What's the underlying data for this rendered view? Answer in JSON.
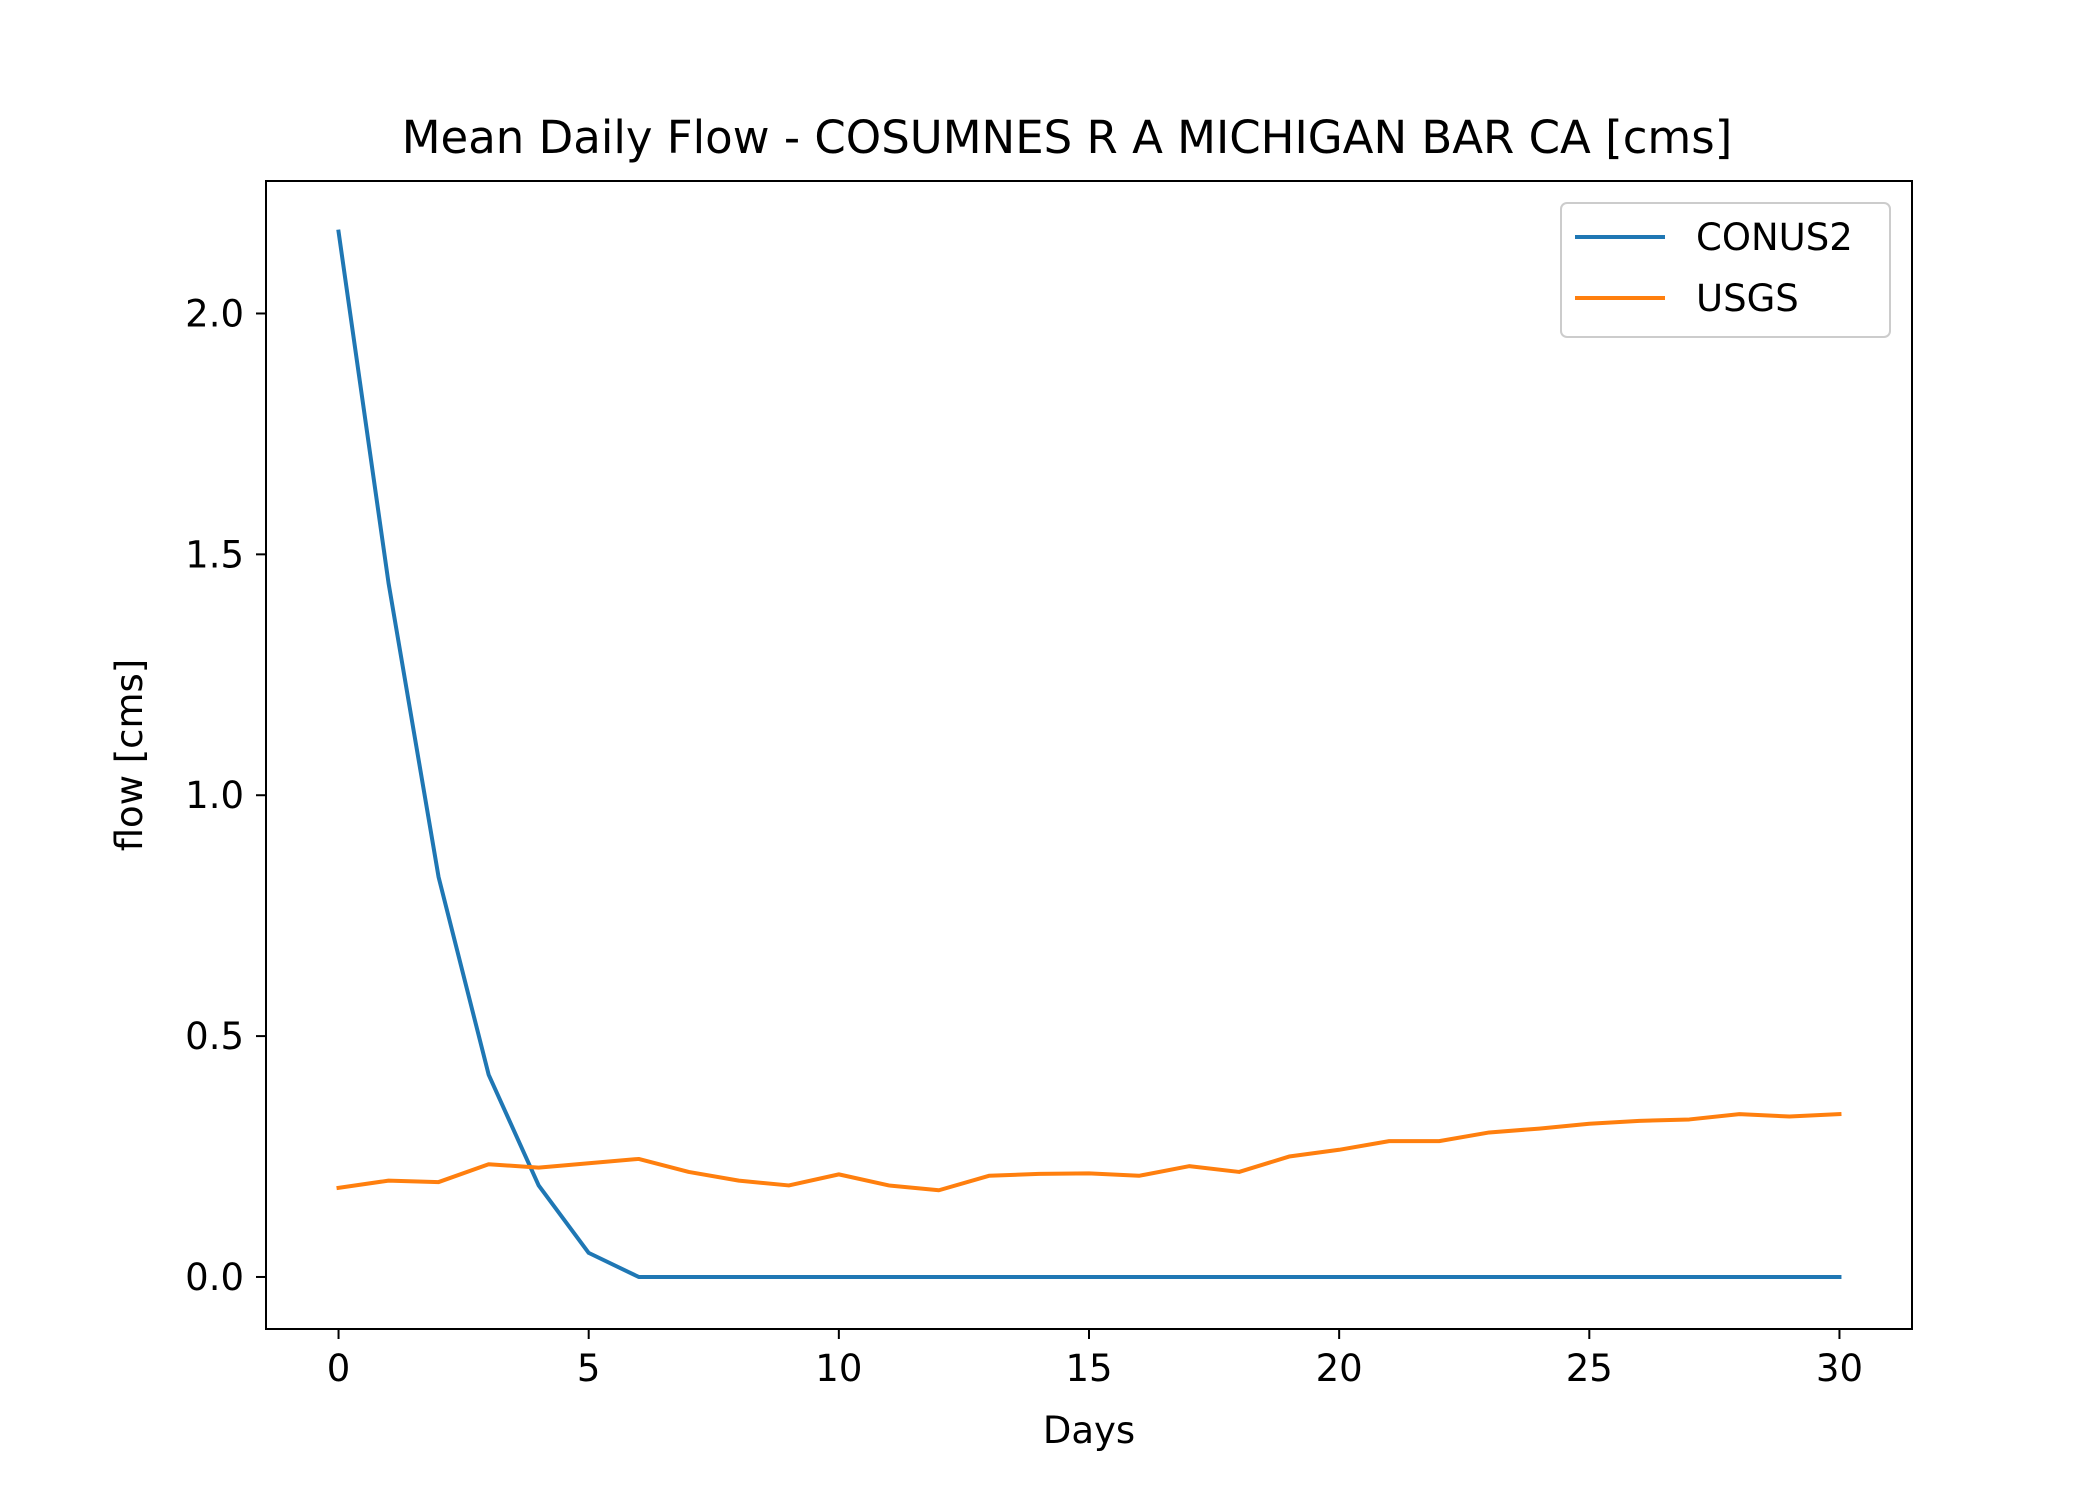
{
  "chart_data": {
    "type": "line",
    "title": "Mean Daily Flow - COSUMNES R A MICHIGAN BAR CA [cms]",
    "xlabel": "Days",
    "ylabel": "flow [cms]",
    "xlim": [
      -1.45,
      31.45
    ],
    "ylim": [
      -0.108,
      2.275
    ],
    "xticks": [
      0,
      5,
      10,
      15,
      20,
      25,
      30
    ],
    "xtick_labels": [
      "0",
      "5",
      "10",
      "15",
      "20",
      "25",
      "30"
    ],
    "yticks": [
      0.0,
      0.5,
      1.0,
      1.5,
      2.0
    ],
    "ytick_labels": [
      "0.0",
      "0.5",
      "1.0",
      "1.5",
      "2.0"
    ],
    "grid": false,
    "legend_position": "top-right",
    "x": [
      0,
      1,
      2,
      3,
      4,
      5,
      6,
      7,
      8,
      9,
      10,
      11,
      12,
      13,
      14,
      15,
      16,
      17,
      18,
      19,
      20,
      21,
      22,
      23,
      24,
      25,
      26,
      27,
      28,
      29,
      30
    ],
    "series": [
      {
        "name": "CONUS2",
        "color": "#1f77b4",
        "values": [
          2.17,
          1.44,
          0.83,
          0.42,
          0.19,
          0.05,
          0.0,
          0.0,
          0.0,
          0.0,
          0.0,
          0.0,
          0.0,
          0.0,
          0.0,
          0.0,
          0.0,
          0.0,
          0.0,
          0.0,
          0.0,
          0.0,
          0.0,
          0.0,
          0.0,
          0.0,
          0.0,
          0.0,
          0.0,
          0.0,
          0.0
        ]
      },
      {
        "name": "USGS",
        "color": "#ff7f0e",
        "values": [
          0.185,
          0.2,
          0.197,
          0.234,
          0.227,
          0.236,
          0.245,
          0.218,
          0.2,
          0.19,
          0.213,
          0.19,
          0.18,
          0.21,
          0.214,
          0.215,
          0.21,
          0.23,
          0.218,
          0.25,
          0.264,
          0.282,
          0.282,
          0.3,
          0.308,
          0.318,
          0.324,
          0.327,
          0.338,
          0.333,
          0.338
        ]
      }
    ]
  }
}
